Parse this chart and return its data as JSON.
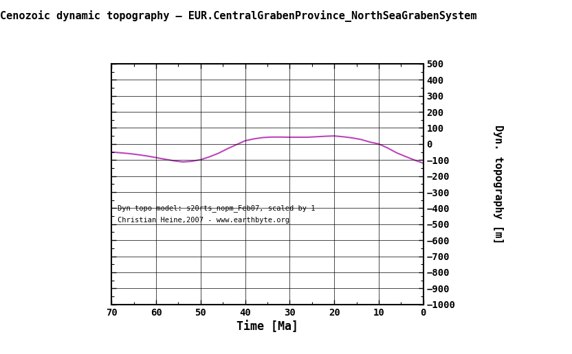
{
  "title": "Cenozoic dynamic topography – EUR.CentralGrabenProvince_NorthSeaGrabenSystem",
  "xlabel": "Time [Ma]",
  "ylabel": "Dyn. topography [m]",
  "xlim": [
    70,
    0
  ],
  "ylim": [
    -1000,
    500
  ],
  "yticks": [
    -1000,
    -900,
    -800,
    -700,
    -600,
    -500,
    -400,
    -300,
    -200,
    -100,
    0,
    100,
    200,
    300,
    400,
    500
  ],
  "xticks": [
    70,
    60,
    50,
    40,
    30,
    20,
    10,
    0
  ],
  "line_color": "#bb44bb",
  "annotation1": "Dyn topo model: s20rts_nopm_Feb07, scaled by 1",
  "annotation2": "Christian Heine,2007 - www.earthbyte.org",
  "time_values": [
    70,
    68,
    66,
    64,
    62,
    60,
    58,
    56,
    54,
    52,
    50,
    48,
    46,
    44,
    42,
    40,
    38,
    36,
    34,
    32,
    30,
    28,
    26,
    24,
    22,
    20,
    18,
    16,
    14,
    12,
    10,
    8,
    6,
    4,
    2,
    0
  ],
  "dyntopo_values": [
    -50,
    -55,
    -60,
    -67,
    -75,
    -85,
    -95,
    -105,
    -112,
    -108,
    -98,
    -80,
    -58,
    -30,
    -5,
    20,
    32,
    40,
    43,
    43,
    42,
    42,
    42,
    45,
    48,
    50,
    45,
    38,
    28,
    12,
    0,
    -25,
    -55,
    -78,
    -100,
    -120
  ]
}
